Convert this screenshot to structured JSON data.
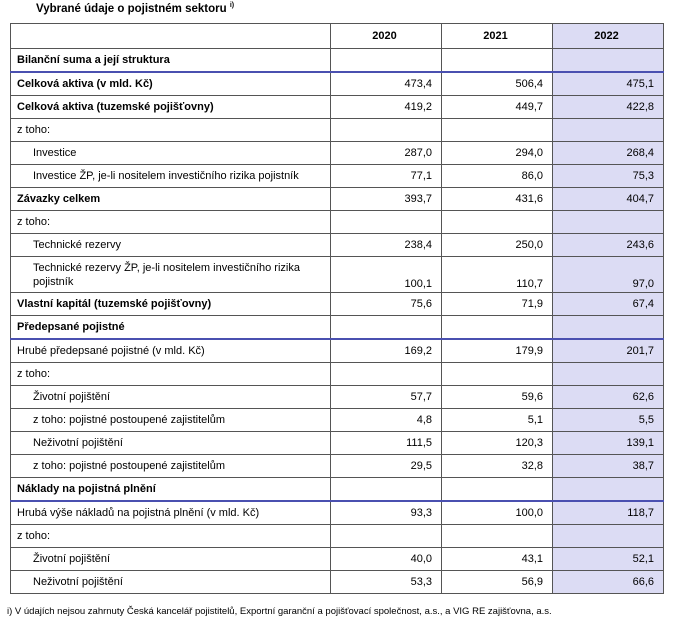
{
  "title": "Vybrané údaje o pojistném sektoru",
  "title_sup": "i)",
  "highlight_color": "#dcdcf4",
  "header": {
    "label": "",
    "y2020": "2020",
    "y2021": "2021",
    "y2022": "2022"
  },
  "rows": [
    {
      "label": "Bilanční suma a její struktura",
      "v2020": "",
      "v2021": "",
      "v2022": ""
    },
    {
      "label": "Celková aktiva (v mld. Kč)",
      "v2020": "473,4",
      "v2021": "506,4",
      "v2022": "475,1"
    },
    {
      "label": "Celková aktiva (tuzemské pojišťovny)",
      "v2020": "419,2",
      "v2021": "449,7",
      "v2022": "422,8"
    },
    {
      "label": "z toho:",
      "v2020": "",
      "v2021": "",
      "v2022": ""
    },
    {
      "label": "Investice",
      "v2020": "287,0",
      "v2021": "294,0",
      "v2022": "268,4"
    },
    {
      "label": "Investice ŽP, je-li nositelem investičního rizika pojistník",
      "v2020": "77,1",
      "v2021": "86,0",
      "v2022": "75,3"
    },
    {
      "label": "Závazky celkem",
      "v2020": "393,7",
      "v2021": "431,6",
      "v2022": "404,7"
    },
    {
      "label": "z toho:",
      "v2020": "",
      "v2021": "",
      "v2022": ""
    },
    {
      "label": "Technické rezervy",
      "v2020": "238,4",
      "v2021": "250,0",
      "v2022": "243,6"
    },
    {
      "label": "Technické rezervy ŽP, je-li nositelem investičního rizika pojistník",
      "v2020": "100,1",
      "v2021": "110,7",
      "v2022": "97,0"
    },
    {
      "label": "Vlastní kapitál (tuzemské pojišťovny)",
      "v2020": "75,6",
      "v2021": "71,9",
      "v2022": "67,4"
    },
    {
      "label": "Předepsané pojistné",
      "v2020": "",
      "v2021": "",
      "v2022": ""
    },
    {
      "label": "Hrubé předepsané pojistné (v mld. Kč)",
      "v2020": "169,2",
      "v2021": "179,9",
      "v2022": "201,7"
    },
    {
      "label": "z toho:",
      "v2020": "",
      "v2021": "",
      "v2022": ""
    },
    {
      "label": "Životní pojištění",
      "v2020": "57,7",
      "v2021": "59,6",
      "v2022": "62,6"
    },
    {
      "label": "z toho: pojistné postoupené zajistitelům",
      "v2020": "4,8",
      "v2021": "5,1",
      "v2022": "5,5"
    },
    {
      "label": "Neživotní pojištění",
      "v2020": "111,5",
      "v2021": "120,3",
      "v2022": "139,1"
    },
    {
      "label": "z toho: pojistné postoupené zajistitelům",
      "v2020": "29,5",
      "v2021": "32,8",
      "v2022": "38,7"
    },
    {
      "label": "Náklady na pojistná plnění",
      "v2020": "",
      "v2021": "",
      "v2022": ""
    },
    {
      "label": "Hrubá výše nákladů na pojistná plnění (v mld. Kč)",
      "v2020": "93,3",
      "v2021": "100,0",
      "v2022": "118,7"
    },
    {
      "label": "z toho:",
      "v2020": "",
      "v2021": "",
      "v2022": ""
    },
    {
      "label": "Životní pojištění",
      "v2020": "40,0",
      "v2021": "43,1",
      "v2022": "52,1"
    },
    {
      "label": "Neživotní pojištění",
      "v2020": "53,3",
      "v2021": "56,9",
      "v2022": "66,6"
    }
  ],
  "footnote": "i) V údajích nejsou zahrnuty Česká kancelář pojistitelů, Exportní garanční a pojišťovací společnost, a.s., a VIG RE zajišťovna, a.s."
}
